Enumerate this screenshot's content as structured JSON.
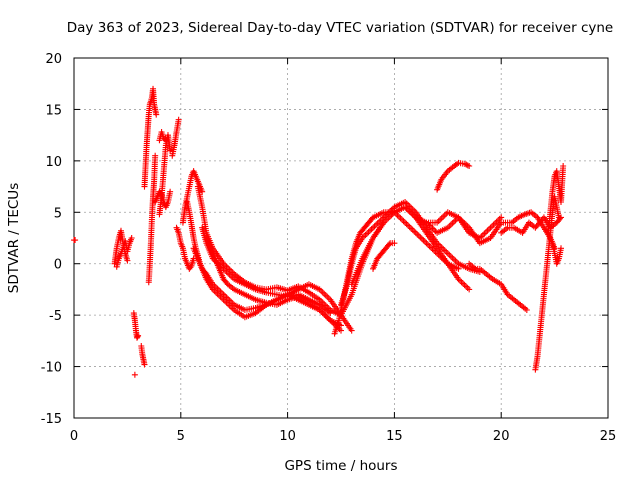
{
  "chart_data": {
    "type": "scatter",
    "title": "Day 363 of 2023, Sidereal Day-to-day VTEC variation (SDTVAR) for receiver cyne",
    "xlabel": "GPS time / hours",
    "ylabel": "SDTVAR / TECUs",
    "xlim": [
      0,
      25
    ],
    "ylim": [
      -15,
      20
    ],
    "xticks": [
      0,
      5,
      10,
      15,
      20,
      25
    ],
    "yticks": [
      -15,
      -10,
      -5,
      0,
      5,
      10,
      15,
      20
    ],
    "xtick_labels": [
      "0",
      "5",
      "10",
      "15",
      "20",
      "25"
    ],
    "ytick_labels": [
      "-15",
      "-10",
      "-5",
      "0",
      "5",
      "10",
      "15",
      "20"
    ],
    "grid": true,
    "marker": "+",
    "color": "#ff0000",
    "series": [
      {
        "name": "t0",
        "x": [
          0.0,
          0.05
        ],
        "y": [
          2.3,
          2.3
        ]
      },
      {
        "name": "t1",
        "x": [
          1.9,
          2.0,
          2.1,
          2.2,
          2.3,
          2.4,
          2.5
        ],
        "y": [
          0.0,
          1.5,
          2.5,
          3.2,
          2.0,
          1.0,
          0.3
        ]
      },
      {
        "name": "t2",
        "x": [
          2.0,
          2.1,
          2.2,
          2.3,
          2.4,
          2.5,
          2.6,
          2.7
        ],
        "y": [
          -0.3,
          0.5,
          1.0,
          1.6,
          2.2,
          1.2,
          2.0,
          2.5
        ]
      },
      {
        "name": "t3",
        "x": [
          2.8,
          2.85,
          2.9,
          2.95,
          3.0
        ],
        "y": [
          -4.8,
          -5.5,
          -6.5,
          -7.2,
          -7.0
        ]
      },
      {
        "name": "t3b",
        "x": [
          2.85
        ],
        "y": [
          -10.8
        ]
      },
      {
        "name": "t4",
        "x": [
          3.15,
          3.2,
          3.25,
          3.3
        ],
        "y": [
          -8.0,
          -8.8,
          -9.3,
          -9.8
        ]
      },
      {
        "name": "t5",
        "x": [
          3.3,
          3.35,
          3.4,
          3.45,
          3.5,
          3.55,
          3.6,
          3.65,
          3.7,
          3.75,
          3.8,
          3.85
        ],
        "y": [
          7.5,
          9.5,
          11.5,
          13.0,
          14.5,
          15.5,
          15.8,
          16.2,
          17.0,
          15.5,
          15.0,
          14.5
        ]
      },
      {
        "name": "t6",
        "x": [
          3.5,
          3.55,
          3.6,
          3.65,
          3.7,
          3.75,
          3.8
        ],
        "y": [
          -1.8,
          0.0,
          2.0,
          4.5,
          6.5,
          8.0,
          10.5
        ]
      },
      {
        "name": "t7",
        "x": [
          3.8,
          3.9,
          4.0,
          4.1,
          4.2,
          4.3,
          4.4,
          4.5
        ],
        "y": [
          6.0,
          6.5,
          7.0,
          6.8,
          6.0,
          5.5,
          6.0,
          7.0
        ]
      },
      {
        "name": "t8",
        "x": [
          4.0,
          4.1,
          4.2,
          4.3,
          4.4,
          4.5
        ],
        "y": [
          4.8,
          6.5,
          9.0,
          11.5,
          12.5,
          11.0
        ]
      },
      {
        "name": "t9",
        "x": [
          4.0,
          4.1,
          4.2,
          4.3
        ],
        "y": [
          12.0,
          12.8,
          12.2,
          12.0
        ]
      },
      {
        "name": "t10",
        "x": [
          4.6,
          4.7,
          4.8,
          4.9
        ],
        "y": [
          10.5,
          11.5,
          12.8,
          14.0
        ]
      },
      {
        "name": "t11",
        "x": [
          4.8,
          4.9,
          5.0,
          5.1,
          5.2,
          5.3,
          5.4,
          5.5,
          5.6
        ],
        "y": [
          3.5,
          3.0,
          2.0,
          1.5,
          0.5,
          0.0,
          -0.5,
          -0.2,
          0.5
        ]
      },
      {
        "name": "t12",
        "x": [
          5.1,
          5.2,
          5.3,
          5.4,
          5.5,
          5.6,
          5.7,
          5.8,
          5.9,
          6.0
        ],
        "y": [
          4.0,
          5.5,
          6.5,
          7.5,
          8.5,
          9.0,
          8.5,
          8.0,
          7.5,
          7.0
        ]
      },
      {
        "name": "t13",
        "x": [
          5.3,
          5.4,
          5.5,
          5.6,
          5.7,
          5.8,
          5.9,
          6.0,
          6.2,
          6.5,
          7.0,
          7.5,
          8.0,
          8.5,
          9.0,
          9.5,
          10.0,
          10.5,
          11.0,
          11.5,
          12.0,
          12.5,
          13.0
        ],
        "y": [
          6.0,
          5.0,
          3.8,
          2.5,
          1.5,
          0.8,
          0.0,
          -0.5,
          -1.0,
          -2.0,
          -3.0,
          -4.0,
          -4.5,
          -4.3,
          -4.0,
          -3.5,
          -3.0,
          -2.5,
          -2.0,
          -2.5,
          -3.5,
          -5.0,
          -6.5
        ]
      },
      {
        "name": "t14",
        "x": [
          5.6,
          5.8,
          6.0,
          6.2,
          6.5,
          7.0,
          7.5,
          8.0,
          8.5,
          9.0,
          9.5,
          10.0,
          10.5,
          11.0,
          11.5,
          12.0,
          12.5
        ],
        "y": [
          1.5,
          0.5,
          -0.5,
          -1.5,
          -2.5,
          -3.5,
          -4.5,
          -5.2,
          -4.8,
          -4.0,
          -3.5,
          -3.0,
          -3.5,
          -4.0,
          -4.5,
          -5.5,
          -6.5
        ]
      },
      {
        "name": "t15",
        "x": [
          5.8,
          6.0,
          6.2,
          6.5,
          7.0,
          7.5,
          8.0,
          8.5,
          9.0,
          9.5,
          10.0,
          10.5,
          11.0,
          11.5,
          12.0,
          12.5,
          13.0,
          13.5,
          14.0,
          14.5
        ],
        "y": [
          7.5,
          5.5,
          3.0,
          1.5,
          0.0,
          -1.0,
          -1.8,
          -2.3,
          -2.5,
          -2.3,
          -2.6,
          -2.2,
          -2.8,
          -3.5,
          -4.5,
          -5.0,
          -3.0,
          0.0,
          2.5,
          4.0
        ]
      },
      {
        "name": "t16",
        "x": [
          6.0,
          6.2,
          6.5,
          7.0,
          7.5,
          8.0,
          8.5,
          9.0,
          9.5,
          10.0,
          10.5,
          11.0,
          11.5,
          12.0
        ],
        "y": [
          3.5,
          2.0,
          0.5,
          -0.5,
          -1.5,
          -2.0,
          -2.5,
          -2.8,
          -3.0,
          -3.2,
          -3.0,
          -3.5,
          -4.0,
          -4.8
        ]
      },
      {
        "name": "t17",
        "x": [
          6.2,
          6.4,
          6.6,
          6.8,
          7.0,
          7.2,
          7.5,
          8.0,
          8.5,
          9.0,
          9.5,
          10.0,
          10.5,
          11.0,
          11.5,
          12.0,
          12.5
        ],
        "y": [
          2.5,
          1.5,
          0.5,
          -0.5,
          -1.5,
          -2.0,
          -2.5,
          -3.0,
          -3.5,
          -3.8,
          -4.0,
          -3.5,
          -3.2,
          -3.8,
          -4.5,
          -5.5,
          -6.0
        ]
      },
      {
        "name": "t18",
        "x": [
          12.2,
          12.4,
          12.6,
          12.8,
          13.0,
          13.2,
          13.4,
          13.6,
          13.8,
          14.0,
          14.5,
          15.0,
          15.5,
          16.0,
          16.5,
          17.0,
          17.5,
          18.0
        ],
        "y": [
          -6.8,
          -5.5,
          -3.5,
          -1.5,
          0.5,
          2.0,
          3.0,
          3.5,
          4.0,
          4.5,
          5.0,
          5.0,
          4.0,
          3.0,
          2.0,
          1.0,
          0.0,
          -0.5
        ]
      },
      {
        "name": "t19",
        "x": [
          12.5,
          12.8,
          13.0,
          13.2,
          13.5,
          14.0,
          14.5,
          15.0,
          15.5,
          16.0,
          16.5,
          17.0,
          17.5,
          18.0,
          18.5,
          19.0
        ],
        "y": [
          -4.0,
          -2.0,
          0.0,
          1.5,
          2.5,
          3.5,
          4.5,
          5.5,
          6.0,
          5.0,
          3.5,
          2.0,
          1.0,
          0.0,
          -0.5,
          -0.8
        ]
      },
      {
        "name": "t20",
        "x": [
          13.0,
          13.5,
          14.0,
          14.5,
          15.0,
          15.5,
          16.0,
          16.5,
          17.0,
          17.5,
          18.0,
          18.5
        ],
        "y": [
          -2.0,
          0.5,
          2.5,
          4.0,
          5.0,
          5.5,
          4.5,
          3.0,
          1.5,
          0.0,
          -1.5,
          -2.5
        ]
      },
      {
        "name": "t21",
        "x": [
          14.0,
          14.2,
          14.4,
          14.6,
          14.8,
          15.0
        ],
        "y": [
          -0.5,
          0.5,
          1.0,
          1.5,
          2.0,
          2.0
        ]
      },
      {
        "name": "t22",
        "x": [
          15.5,
          16.0,
          16.5,
          17.0,
          17.5,
          18.0,
          18.5,
          19.0,
          19.5,
          20.0
        ],
        "y": [
          5.5,
          4.5,
          4.0,
          4.0,
          5.0,
          4.5,
          3.0,
          2.5,
          3.5,
          4.5
        ]
      },
      {
        "name": "t23",
        "x": [
          16.5,
          17.0,
          17.5,
          18.0,
          18.5,
          19.0,
          19.5,
          20.0,
          20.5
        ],
        "y": [
          4.0,
          3.0,
          3.5,
          4.5,
          3.5,
          2.0,
          2.5,
          4.0,
          4.0
        ]
      },
      {
        "name": "t24",
        "x": [
          17.0,
          17.2,
          17.5,
          17.8,
          18.0,
          18.3,
          18.5
        ],
        "y": [
          7.2,
          8.2,
          9.0,
          9.5,
          9.8,
          9.7,
          9.5
        ]
      },
      {
        "name": "t25",
        "x": [
          18.5,
          18.8,
          19.0,
          19.3,
          19.6,
          20.0,
          20.3,
          20.6,
          20.9,
          21.2
        ],
        "y": [
          0.0,
          -0.5,
          -0.5,
          -1.0,
          -1.5,
          -2.0,
          -3.0,
          -3.5,
          -4.0,
          -4.5
        ]
      },
      {
        "name": "t26",
        "x": [
          20.0,
          20.3,
          20.6,
          21.0,
          21.3,
          21.6,
          22.0,
          22.3,
          22.6,
          22.8
        ],
        "y": [
          3.0,
          3.5,
          3.5,
          3.0,
          4.0,
          3.5,
          4.5,
          3.5,
          4.0,
          4.5
        ]
      },
      {
        "name": "t27",
        "x": [
          20.5,
          20.8,
          21.1,
          21.4,
          21.7,
          22.0,
          22.3,
          22.5
        ],
        "y": [
          4.0,
          4.5,
          4.8,
          5.0,
          4.5,
          3.5,
          2.5,
          1.5
        ]
      },
      {
        "name": "t28",
        "x": [
          21.6,
          21.7,
          21.8,
          21.9,
          22.0,
          22.1,
          22.2,
          22.3,
          22.4,
          22.5,
          22.6,
          22.7
        ],
        "y": [
          -10.3,
          -9.0,
          -7.0,
          -5.0,
          -3.0,
          -1.0,
          1.0,
          3.0,
          5.0,
          6.5,
          5.5,
          4.5
        ]
      },
      {
        "name": "t29",
        "x": [
          22.2,
          22.3,
          22.4,
          22.5,
          22.6,
          22.7,
          22.8,
          22.9
        ],
        "y": [
          3.0,
          5.0,
          7.0,
          8.5,
          9.0,
          7.5,
          6.0,
          9.5
        ]
      },
      {
        "name": "t30",
        "x": [
          22.4,
          22.5,
          22.6,
          22.7,
          22.8
        ],
        "y": [
          2.0,
          1.0,
          0.0,
          0.5,
          1.5
        ]
      }
    ]
  }
}
